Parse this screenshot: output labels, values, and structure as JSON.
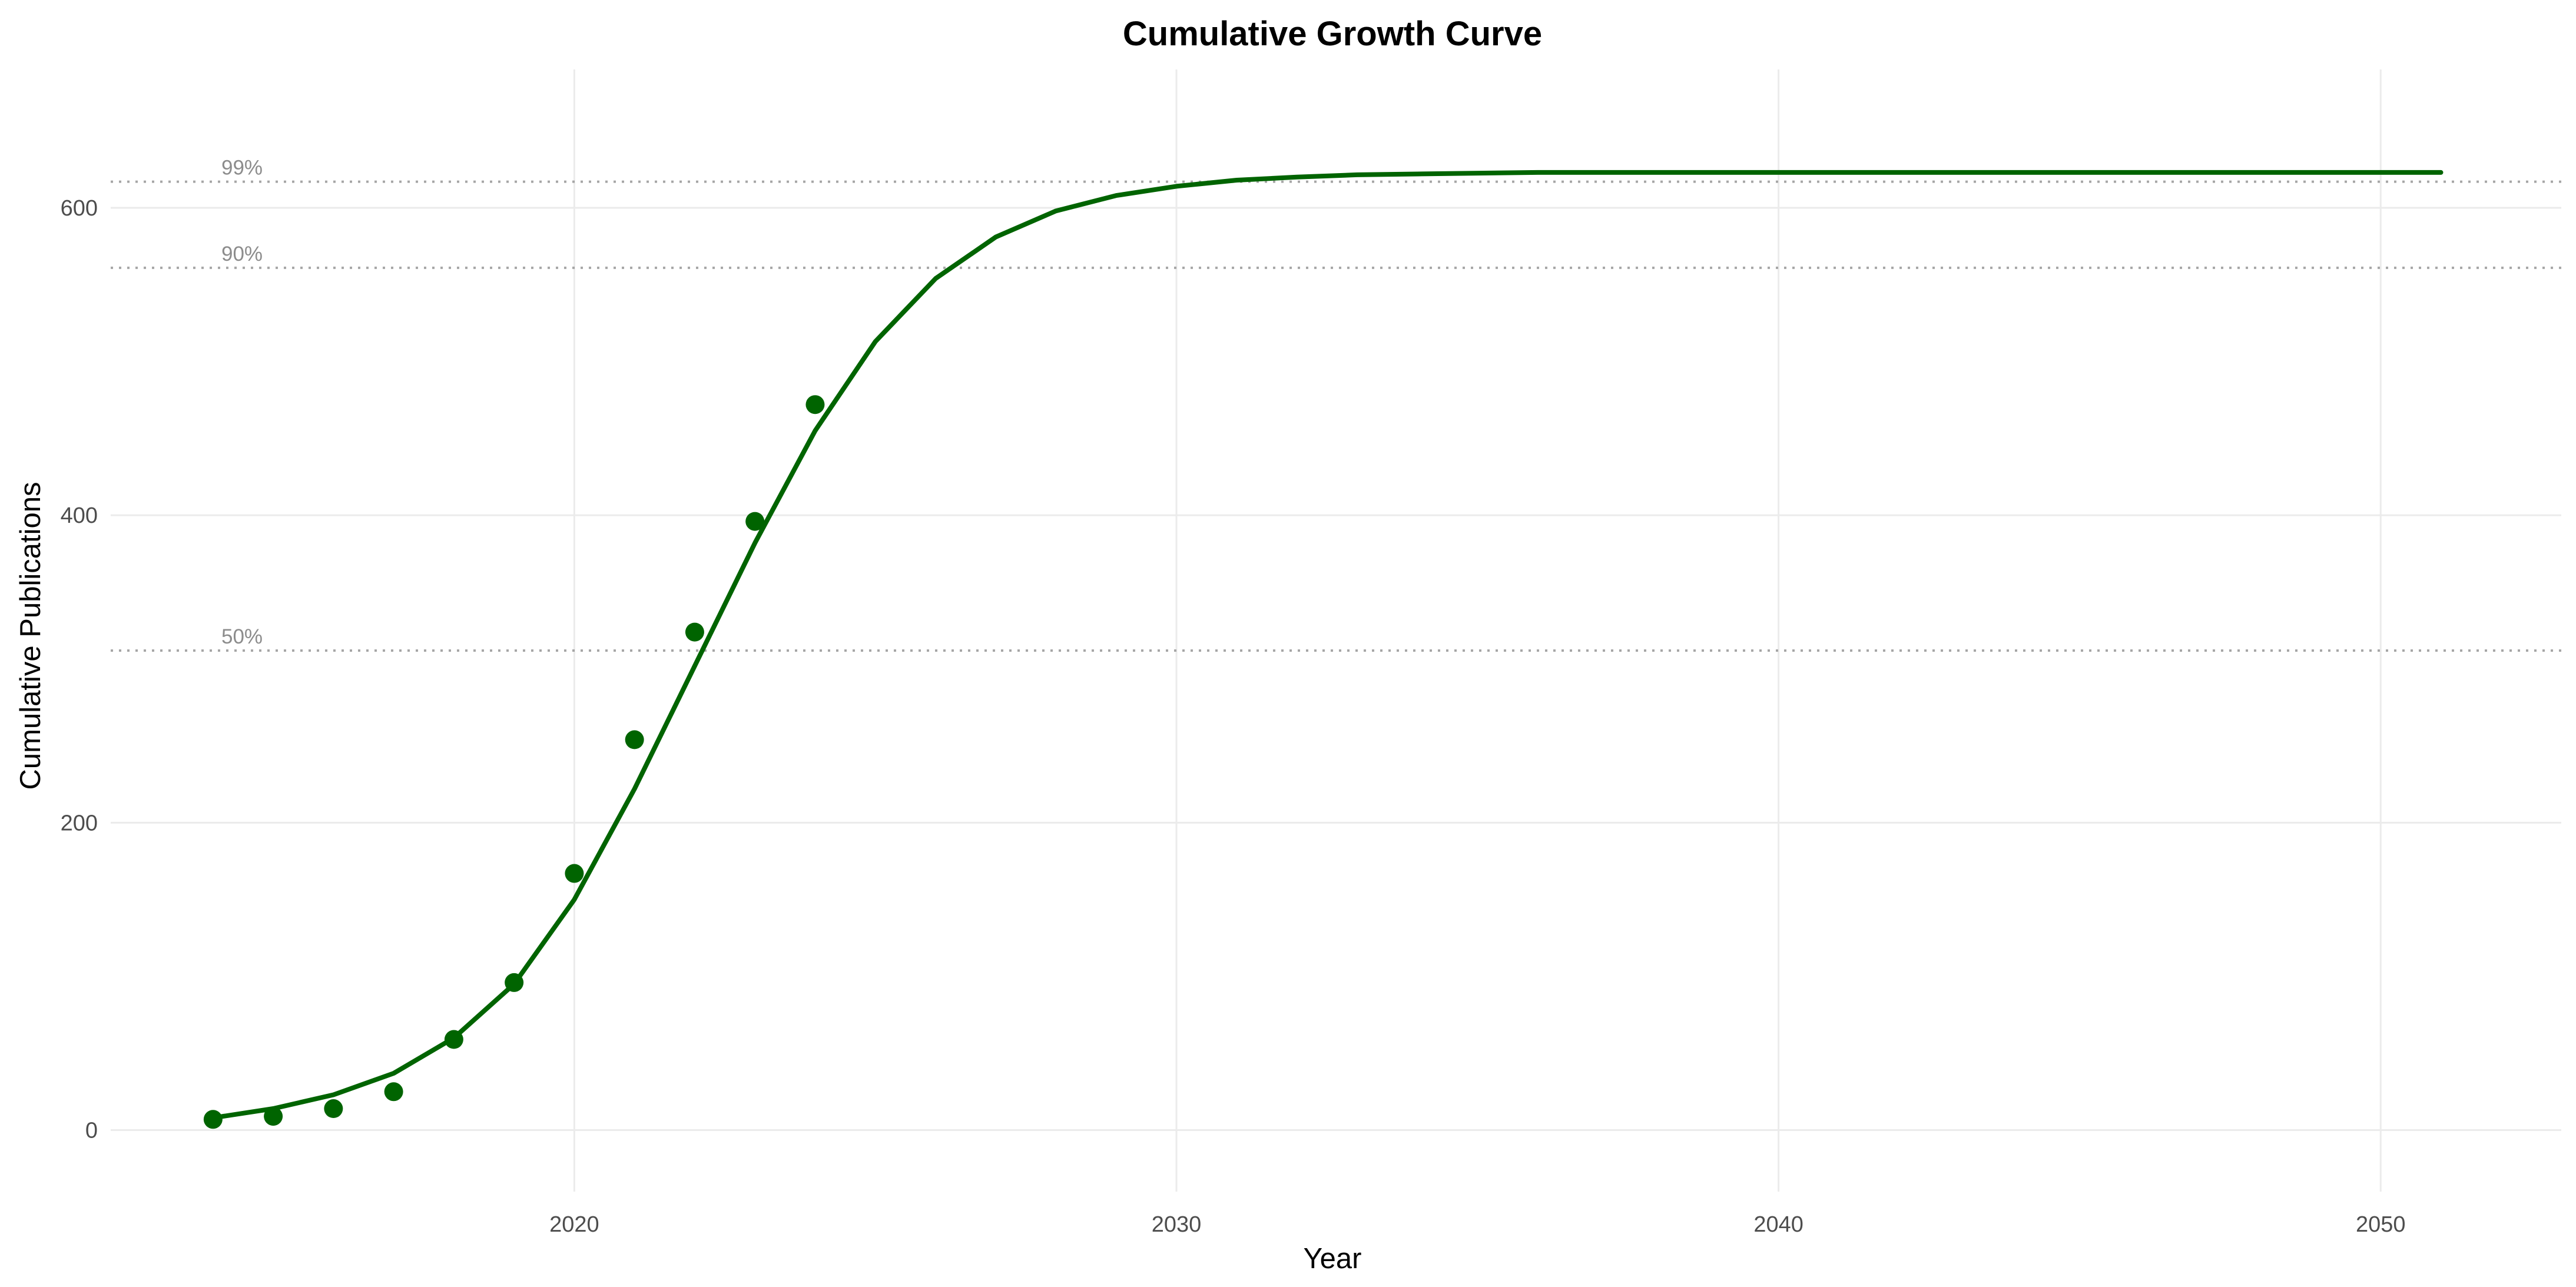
{
  "chart_data": {
    "type": "line",
    "title": "Cumulative Growth Curve",
    "xlabel": "Year",
    "ylabel": "Cumulative Publications",
    "xlim": [
      2012.3,
      2053.0
    ],
    "ylim": [
      -40,
      690
    ],
    "x_ticks": [
      2020,
      2030,
      2040,
      2050
    ],
    "y_ticks": [
      0,
      200,
      400,
      600
    ],
    "grid": true,
    "color": "#006400",
    "reference_lines": [
      {
        "label": "99%",
        "y": 617
      },
      {
        "label": "90%",
        "y": 561
      },
      {
        "label": "50%",
        "y": 312
      }
    ],
    "series": [
      {
        "kind": "points",
        "x": [
          2014,
          2015,
          2016,
          2017,
          2018,
          2019,
          2020,
          2021,
          2022,
          2023,
          2024
        ],
        "y": [
          7,
          9,
          14,
          25,
          59,
          96,
          167,
          254,
          324,
          396,
          472
        ]
      },
      {
        "kind": "line",
        "x": [
          2014,
          2015,
          2016,
          2017,
          2018,
          2019,
          2020,
          2021,
          2022,
          2023,
          2024,
          2025,
          2026,
          2027,
          2028,
          2029,
          2030,
          2031,
          2032,
          2033,
          2034,
          2036,
          2040,
          2045,
          2051
        ],
        "y": [
          8,
          14,
          23,
          37,
          60,
          95,
          150,
          222,
          302,
          382,
          455,
          513,
          554,
          581,
          598,
          608,
          614,
          618,
          620,
          621.5,
          622,
          623,
          623,
          623,
          623
        ]
      }
    ]
  }
}
